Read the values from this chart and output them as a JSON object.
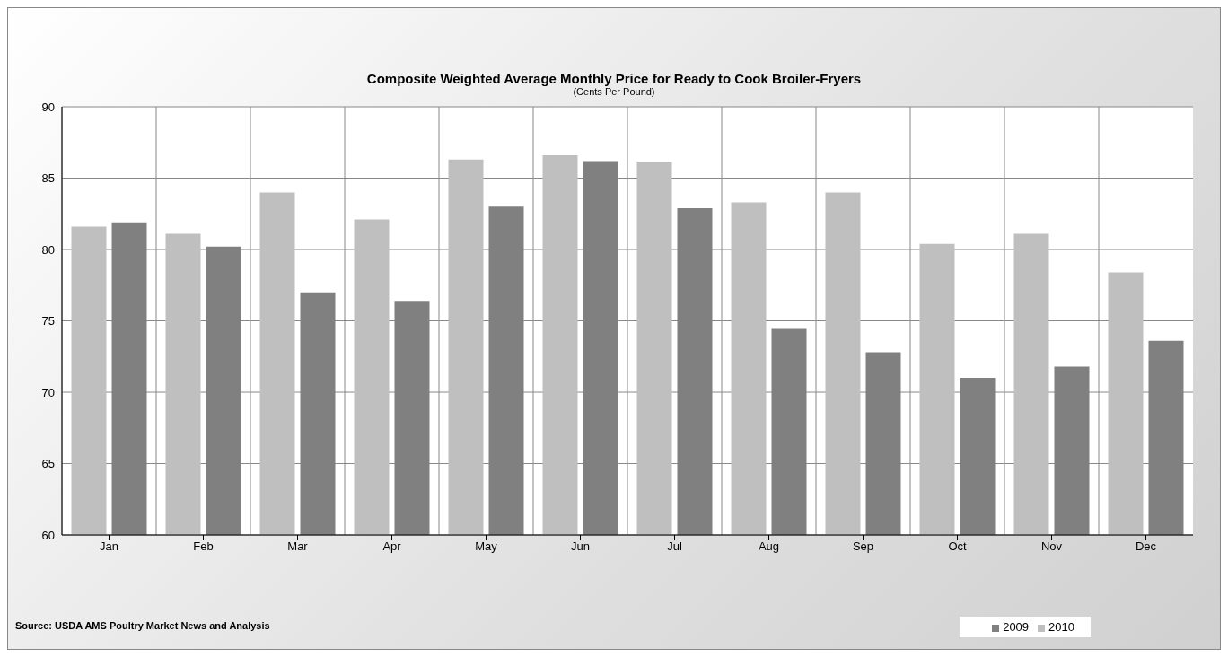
{
  "chart_data": {
    "type": "bar",
    "title": "Composite Weighted Average Monthly Price for Ready to Cook Broiler-Fryers",
    "subtitle": "(Cents Per Pound)",
    "categories": [
      "Jan",
      "Feb",
      "Mar",
      "Apr",
      "May",
      "Jun",
      "Jul",
      "Aug",
      "Sep",
      "Oct",
      "Nov",
      "Dec"
    ],
    "series": [
      {
        "name": "2010",
        "color": "#bfbfbf",
        "values": [
          81.6,
          81.1,
          84.0,
          82.1,
          86.3,
          86.6,
          86.1,
          83.3,
          84.0,
          80.4,
          81.1,
          78.4
        ]
      },
      {
        "name": "2009",
        "color": "#808080",
        "values": [
          81.9,
          80.2,
          77.0,
          76.4,
          83.0,
          86.2,
          82.9,
          74.5,
          72.8,
          71.0,
          71.8,
          73.6
        ]
      }
    ],
    "ylim": [
      60,
      90
    ],
    "yticks": [
      60,
      65,
      70,
      75,
      80,
      85,
      90
    ],
    "grid": true,
    "legend": "bottom right",
    "annotations": [
      "Source: USDA AMS Poultry Market News and Analysis"
    ]
  }
}
